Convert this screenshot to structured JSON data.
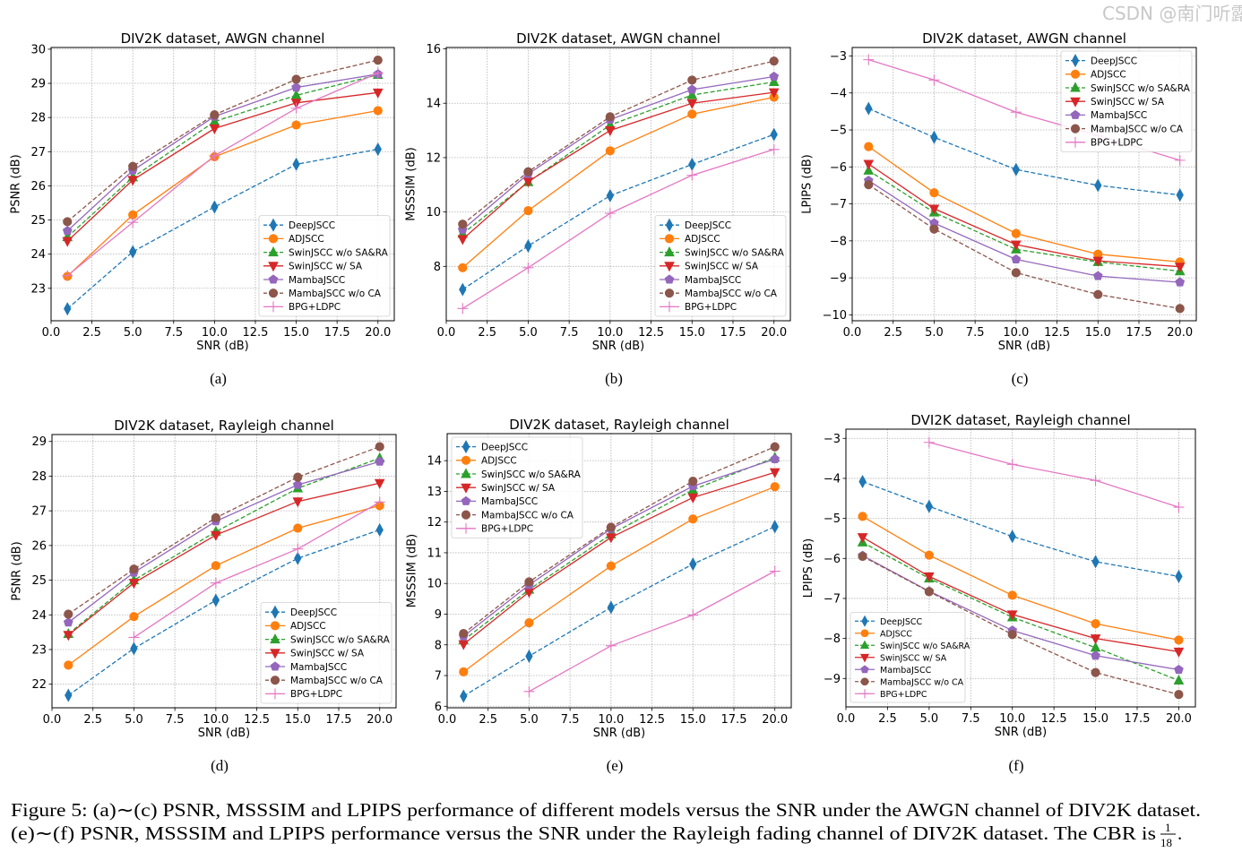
{
  "series_styles": {
    "DeepJSCC": {
      "color": "#1f77b4",
      "linestyle": "dashed",
      "marker": "thin_diamond"
    },
    "ADJSCC": {
      "color": "#ff7f0e",
      "linestyle": "solid",
      "marker": "circle"
    },
    "SwinJSCC w/o SA&RA": {
      "color": "#2ca02c",
      "linestyle": "dashed",
      "marker": "triangle_up"
    },
    "SwinJSCC w/ SA": {
      "color": "#d62728",
      "linestyle": "solid",
      "marker": "triangle_down"
    },
    "MambaJSCC": {
      "color": "#9467bd",
      "linestyle": "solid",
      "marker": "pentagon"
    },
    "MambaJSCC w/o CA": {
      "color": "#8c564b",
      "linestyle": "dashed",
      "marker": "circle"
    },
    "BPG+LDPC": {
      "color": "#e377c2",
      "linestyle": "solid",
      "marker": "plus"
    }
  },
  "chart_data": [
    {
      "type": "line",
      "subplot_label": "(a)",
      "title": "DIV2K dataset, AWGN channel",
      "xlabel": "SNR (dB)",
      "ylabel": "PSNR (dB)",
      "xlim": [
        0,
        21
      ],
      "ylim": [
        22.05,
        30.05
      ],
      "xticks": [
        0,
        2.5,
        5,
        7.5,
        10,
        12.5,
        15,
        17.5,
        20
      ],
      "yticks": [
        23,
        24,
        25,
        26,
        27,
        28,
        29,
        30
      ],
      "grid": true,
      "legend_loc": "lower right",
      "x": [
        1,
        5,
        10,
        15,
        20
      ],
      "series": [
        {
          "name": "DeepJSCC",
          "values": [
            22.4,
            24.07,
            25.38,
            26.63,
            27.07
          ]
        },
        {
          "name": "ADJSCC",
          "values": [
            23.35,
            25.15,
            26.85,
            27.78,
            28.2
          ]
        },
        {
          "name": "SwinJSCC w/o SA&RA",
          "values": [
            24.5,
            26.25,
            27.88,
            28.65,
            29.25
          ]
        },
        {
          "name": "SwinJSCC w/ SA",
          "values": [
            24.38,
            26.17,
            27.68,
            28.43,
            28.73
          ]
        },
        {
          "name": "MambaJSCC",
          "values": [
            24.68,
            26.45,
            28.03,
            28.88,
            29.27
          ]
        },
        {
          "name": "MambaJSCC w/o CA",
          "values": [
            24.95,
            26.57,
            28.08,
            29.12,
            29.68
          ]
        },
        {
          "name": "BPG+LDPC",
          "values": [
            23.37,
            24.93,
            26.88,
            28.27,
            29.3
          ]
        }
      ]
    },
    {
      "type": "line",
      "subplot_label": "(b)",
      "title": "DIV2K dataset, AWGN channel",
      "xlabel": "SNR (dB)",
      "ylabel": "MSSSIM (dB)",
      "xlim": [
        0,
        21
      ],
      "ylim": [
        6.0,
        16.05
      ],
      "xticks": [
        0,
        2.5,
        5,
        7.5,
        10,
        12.5,
        15,
        17.5,
        20
      ],
      "yticks": [
        8,
        10,
        12,
        14,
        16
      ],
      "grid": true,
      "legend_loc": "lower right",
      "x": [
        1,
        5,
        10,
        15,
        20
      ],
      "series": [
        {
          "name": "DeepJSCC",
          "values": [
            7.15,
            8.75,
            10.6,
            11.75,
            12.85
          ]
        },
        {
          "name": "ADJSCC",
          "values": [
            7.95,
            10.05,
            12.25,
            13.6,
            14.22
          ]
        },
        {
          "name": "SwinJSCC w/o SA&RA",
          "values": [
            9.2,
            11.1,
            13.2,
            14.3,
            14.78
          ]
        },
        {
          "name": "SwinJSCC w/ SA",
          "values": [
            9.0,
            11.12,
            13.0,
            14.0,
            14.4
          ]
        },
        {
          "name": "MambaJSCC",
          "values": [
            9.35,
            11.4,
            13.4,
            14.5,
            14.98
          ]
        },
        {
          "name": "MambaJSCC w/o CA",
          "values": [
            9.55,
            11.48,
            13.5,
            14.85,
            15.55
          ]
        },
        {
          "name": "BPG+LDPC",
          "values": [
            6.45,
            7.95,
            9.95,
            11.35,
            12.3
          ]
        }
      ]
    },
    {
      "type": "line",
      "subplot_label": "(c)",
      "title": "DIV2K dataset, AWGN channel",
      "xlabel": "SNR (dB)",
      "ylabel": "LPIPS (dB)",
      "xlim": [
        0,
        21
      ],
      "ylim": [
        -10.16,
        -2.77
      ],
      "xticks": [
        0,
        2.5,
        5,
        7.5,
        10,
        12.5,
        15,
        17.5,
        20
      ],
      "yticks": [
        -10,
        -9,
        -8,
        -7,
        -6,
        -5,
        -4,
        -3
      ],
      "grid": true,
      "legend_loc": "upper right",
      "x": [
        1,
        5,
        10,
        15,
        20
      ],
      "series": [
        {
          "name": "DeepJSCC",
          "values": [
            -4.42,
            -5.2,
            -6.07,
            -6.5,
            -6.76
          ]
        },
        {
          "name": "ADJSCC",
          "values": [
            -5.45,
            -6.7,
            -7.8,
            -8.36,
            -8.57
          ]
        },
        {
          "name": "SwinJSCC w/o SA&RA",
          "values": [
            -6.1,
            -7.23,
            -8.23,
            -8.57,
            -8.82
          ]
        },
        {
          "name": "SwinJSCC w/ SA",
          "values": [
            -5.92,
            -7.13,
            -8.1,
            -8.54,
            -8.7
          ]
        },
        {
          "name": "MambaJSCC",
          "values": [
            -6.37,
            -7.52,
            -8.5,
            -8.95,
            -9.12
          ]
        },
        {
          "name": "MambaJSCC w/o CA",
          "values": [
            -6.48,
            -7.68,
            -8.86,
            -9.45,
            -9.83
          ]
        },
        {
          "name": "BPG+LDPC",
          "values": [
            -3.1,
            -3.65,
            -4.52,
            -5.15,
            -5.82
          ]
        }
      ]
    },
    {
      "type": "line",
      "subplot_label": "(d)",
      "title": "DIV2K dataset, Rayleigh channel",
      "xlabel": "SNR (dB)",
      "ylabel": "PSNR (dB)",
      "xlim": [
        0,
        21
      ],
      "ylim": [
        21.32,
        29.2
      ],
      "xticks": [
        0,
        2.5,
        5,
        7.5,
        10,
        12.5,
        15,
        17.5,
        20
      ],
      "yticks": [
        22,
        23,
        24,
        25,
        26,
        27,
        28,
        29
      ],
      "grid": true,
      "legend_loc": "lower right",
      "x": [
        1,
        5,
        10,
        15,
        20
      ],
      "series": [
        {
          "name": "DeepJSCC",
          "values": [
            21.68,
            23.03,
            24.42,
            25.63,
            26.45
          ]
        },
        {
          "name": "ADJSCC",
          "values": [
            22.55,
            23.95,
            25.42,
            26.5,
            27.15
          ]
        },
        {
          "name": "SwinJSCC w/o SA&RA",
          "values": [
            23.45,
            25.0,
            26.4,
            27.65,
            28.52
          ]
        },
        {
          "name": "SwinJSCC w/ SA",
          "values": [
            23.42,
            24.92,
            26.3,
            27.27,
            27.8
          ]
        },
        {
          "name": "MambaJSCC",
          "values": [
            23.78,
            25.22,
            26.7,
            27.75,
            28.42
          ]
        },
        {
          "name": "MambaJSCC w/o CA",
          "values": [
            24.02,
            25.32,
            26.8,
            27.97,
            28.85
          ]
        },
        {
          "name": "BPG+LDPC",
          "values": [
            null,
            23.35,
            24.92,
            25.9,
            27.25
          ]
        }
      ]
    },
    {
      "type": "line",
      "subplot_label": "(e)",
      "title": "DIV2K dataset, Rayleigh channel",
      "xlabel": "SNR (dB)",
      "ylabel": "MSSSIM (dB)",
      "xlim": [
        0,
        21
      ],
      "ylim": [
        5.95,
        14.88
      ],
      "xticks": [
        0,
        2.5,
        5,
        7.5,
        10,
        12.5,
        15,
        17.5,
        20
      ],
      "yticks": [
        6,
        7,
        8,
        9,
        10,
        11,
        12,
        13,
        14
      ],
      "grid": true,
      "legend_loc": "upper left",
      "x": [
        1,
        5,
        10,
        15,
        20
      ],
      "series": [
        {
          "name": "DeepJSCC",
          "values": [
            6.33,
            7.63,
            9.22,
            10.63,
            11.85
          ]
        },
        {
          "name": "ADJSCC",
          "values": [
            7.12,
            8.72,
            10.57,
            12.1,
            13.15
          ]
        },
        {
          "name": "SwinJSCC w/o SA&RA",
          "values": [
            8.15,
            9.8,
            11.6,
            13.05,
            14.1
          ]
        },
        {
          "name": "SwinJSCC w/ SA",
          "values": [
            8.02,
            9.72,
            11.5,
            12.8,
            13.62
          ]
        },
        {
          "name": "MambaJSCC",
          "values": [
            8.28,
            9.95,
            11.78,
            13.17,
            14.05
          ]
        },
        {
          "name": "MambaJSCC w/o CA",
          "values": [
            8.37,
            10.05,
            11.83,
            13.33,
            14.45
          ]
        },
        {
          "name": "BPG+LDPC",
          "values": [
            null,
            6.48,
            7.97,
            8.97,
            10.4
          ]
        }
      ]
    },
    {
      "type": "line",
      "subplot_label": "(f)",
      "title": "DVI2K dataset, Rayleigh channel",
      "xlabel": "SNR (dB)",
      "ylabel": "LPIPS (dB)",
      "xlim": [
        0,
        21
      ],
      "ylim": [
        -9.71,
        -2.77
      ],
      "xticks": [
        0,
        2.5,
        5,
        7.5,
        10,
        12.5,
        15,
        17.5,
        20
      ],
      "yticks": [
        -9,
        -8,
        -7,
        -6,
        -5,
        -4,
        -3
      ],
      "grid": true,
      "legend_loc": "lower left",
      "x": [
        1,
        5,
        10,
        15,
        20
      ],
      "series": [
        {
          "name": "DeepJSCC",
          "values": [
            -4.08,
            -4.7,
            -5.45,
            -6.08,
            -6.45
          ]
        },
        {
          "name": "ADJSCC",
          "values": [
            -4.95,
            -5.92,
            -6.92,
            -7.63,
            -8.04
          ]
        },
        {
          "name": "SwinJSCC w/o SA&RA",
          "values": [
            -5.6,
            -6.5,
            -7.47,
            -8.23,
            -9.05
          ]
        },
        {
          "name": "SwinJSCC w/ SA",
          "values": [
            -5.47,
            -6.45,
            -7.4,
            -8.0,
            -8.33
          ]
        },
        {
          "name": "MambaJSCC",
          "values": [
            -5.93,
            -6.82,
            -7.8,
            -8.43,
            -8.78
          ]
        },
        {
          "name": "MambaJSCC w/o CA",
          "values": [
            -5.95,
            -6.83,
            -7.9,
            -8.85,
            -9.4
          ]
        },
        {
          "name": "BPG+LDPC",
          "values": [
            null,
            -3.1,
            -3.65,
            -4.05,
            -4.72
          ]
        }
      ]
    }
  ],
  "caption": {
    "line1": "Figure 5: (a)∼(c) PSNR, MSSSIM and LPIPS performance of different models versus the SNR under the AWGN channel of DIV2K dataset.",
    "line2": "(e)∼(f) PSNR, MSSSIM and LPIPS performance versus the SNR under the Rayleigh fading channel of DIV2K dataset. The CBR is",
    "cbr_numerator": "1",
    "cbr_denominator": "18",
    "end": "."
  },
  "watermark": "CSDN @南门听露"
}
